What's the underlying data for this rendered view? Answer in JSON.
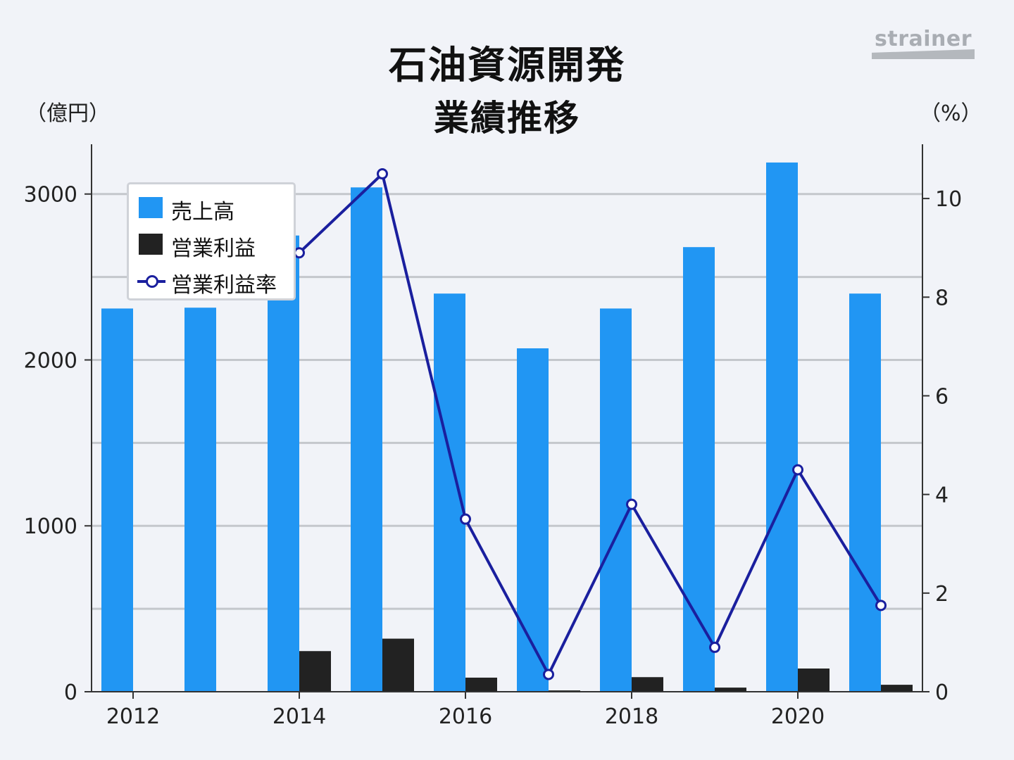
{
  "title": "石油資源開発",
  "subtitle": "業績推移",
  "unit_left": "（億円）",
  "unit_right": "（%）",
  "logo_text": "strainer",
  "colors": {
    "sales": "#2196f3",
    "operating_profit": "#222222",
    "margin_line": "#1a1f9e",
    "background": "#f1f3f8",
    "grid": "#c4c7cc"
  },
  "chart_data": {
    "type": "bar",
    "categories": [
      "2012",
      "2013",
      "2014",
      "2015",
      "2016",
      "2017",
      "2018",
      "2019",
      "2020",
      "2021"
    ],
    "x_tick_labels": [
      "2012",
      "2014",
      "2016",
      "2018",
      "2020"
    ],
    "series": [
      {
        "name": "売上高",
        "type": "bar",
        "axis": "left",
        "values": [
          2310,
          2315,
          2750,
          3040,
          2400,
          2070,
          2310,
          2680,
          3190,
          2400
        ]
      },
      {
        "name": "営業利益",
        "type": "bar",
        "axis": "left",
        "values": [
          0,
          0,
          245,
          320,
          85,
          8,
          88,
          25,
          140,
          42
        ]
      },
      {
        "name": "営業利益率",
        "type": "line",
        "axis": "right",
        "values": [
          null,
          null,
          8.9,
          10.5,
          3.5,
          0.35,
          3.8,
          0.9,
          4.5,
          1.75
        ]
      }
    ],
    "y_left": {
      "label": "（億円）",
      "ylim": [
        0,
        3300
      ],
      "ticks": [
        0,
        1000,
        2000,
        3000
      ],
      "gridlines": [
        0,
        500,
        1000,
        1500,
        2000,
        2500,
        3000
      ]
    },
    "y_right": {
      "label": "（%）",
      "ylim": [
        0,
        11.1
      ],
      "ticks": [
        0,
        2,
        4,
        6,
        8,
        10
      ]
    },
    "legend_position": "top-left",
    "grid": true
  }
}
